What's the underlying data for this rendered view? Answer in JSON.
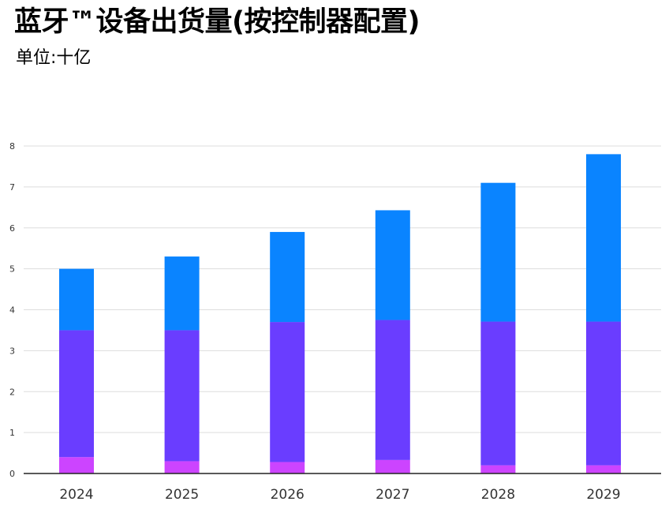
{
  "chart_data": {
    "type": "bar",
    "stacked": true,
    "title": "蓝牙™设备出货量(按控制器配置)",
    "subtitle": "单位:十亿",
    "categories": [
      "2024",
      "2025",
      "2026",
      "2027",
      "2028",
      "2029"
    ],
    "series": [
      {
        "values": [
          0.4,
          0.3,
          0.28,
          0.33,
          0.2,
          0.2
        ]
      },
      {
        "values": [
          3.1,
          3.2,
          3.42,
          3.42,
          3.51,
          3.51
        ]
      },
      {
        "values": [
          1.5,
          1.8,
          2.2,
          2.68,
          3.39,
          4.09
        ]
      }
    ],
    "yticks": [
      "0",
      "1",
      "2",
      "3",
      "4",
      "5",
      "6",
      "7",
      "8"
    ],
    "ylim": [
      0,
      8
    ],
    "grid": true,
    "legend": "none"
  },
  "colors": {
    "series": [
      "#cc44ff",
      "#6a3dff",
      "#0a84ff"
    ],
    "grid": "#dddddd",
    "axis": "#222222",
    "text": "#333333"
  }
}
